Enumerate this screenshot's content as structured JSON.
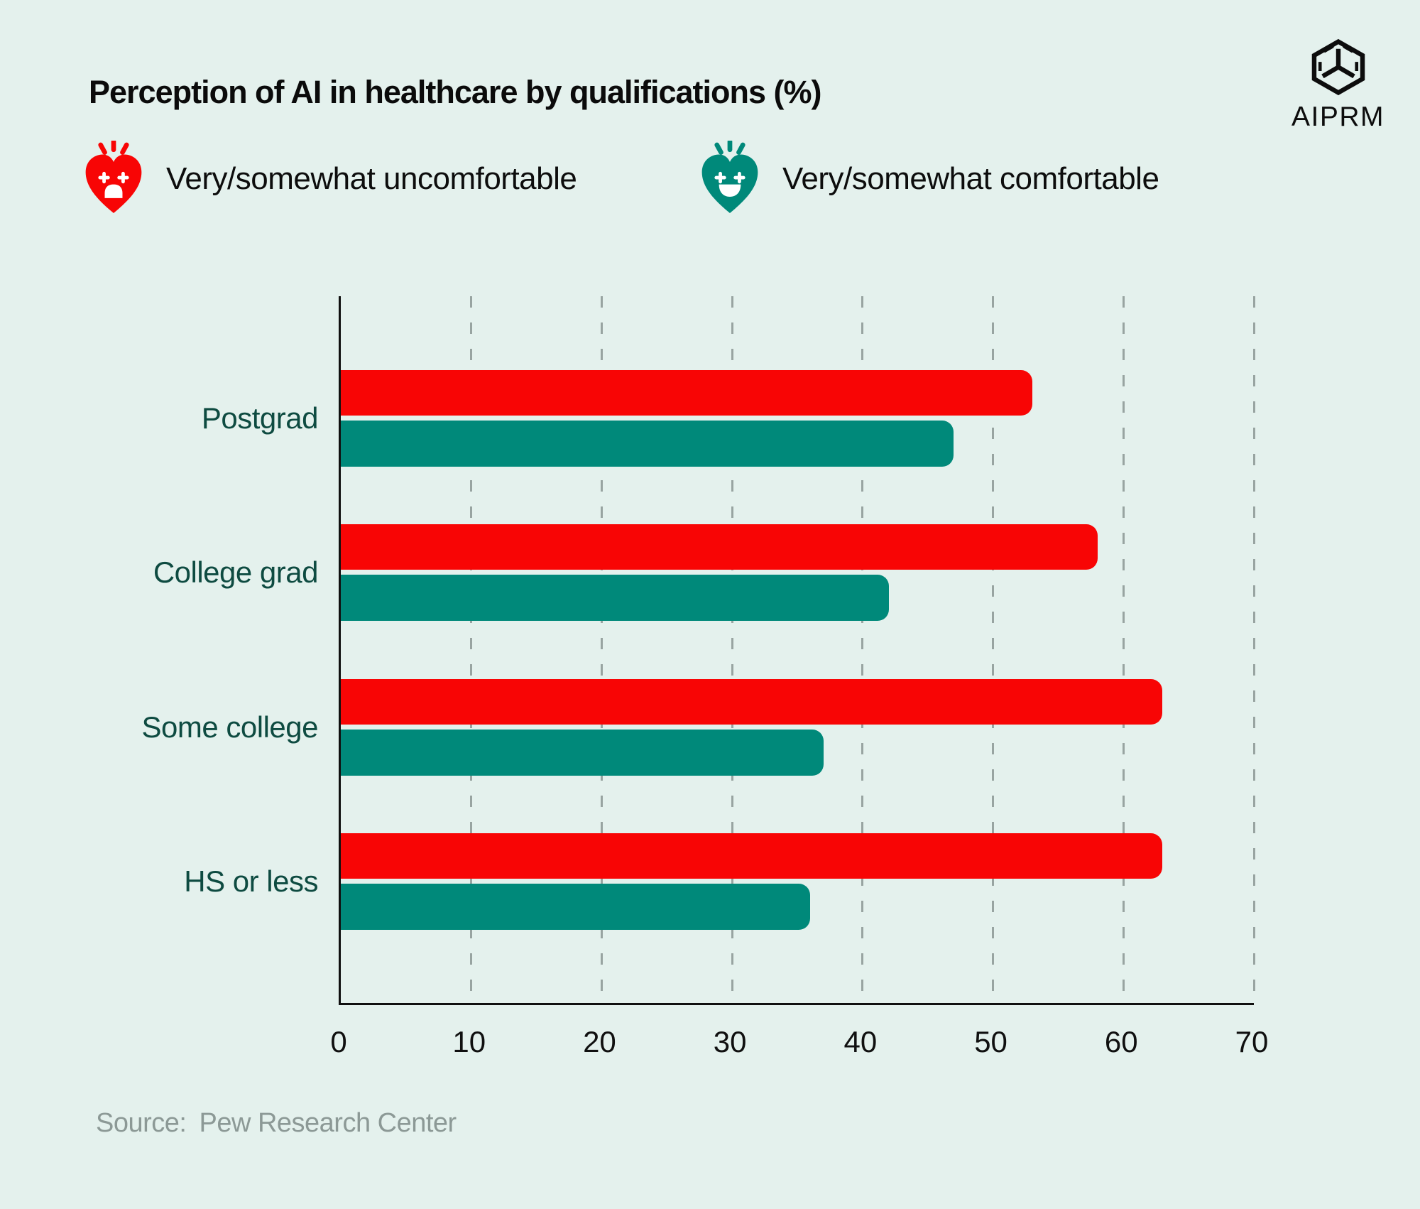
{
  "title": "Perception of AI in healthcare by qualifications (%)",
  "logo": {
    "text": "AIPRM"
  },
  "legend": [
    {
      "label": "Very/somewhat uncomfortable",
      "icon": "shocked-heart-icon",
      "color": "#f80505"
    },
    {
      "label": "Very/somewhat comfortable",
      "icon": "happy-heart-icon",
      "color": "#00897a"
    }
  ],
  "source": {
    "label": "Source:",
    "text": "Pew Research Center"
  },
  "colors": {
    "background": "#e4f1ed",
    "uncomfortable_red": "#f80505",
    "comfortable_teal": "#00897a",
    "category_label": "#0e4b41",
    "gridline": "#98a4a1",
    "axis": "#101010",
    "source_text": "#8c9996"
  },
  "chart_data": {
    "type": "bar",
    "orientation": "horizontal",
    "title": "Perception of AI in healthcare by qualifications (%)",
    "categories": [
      "Postgrad",
      "College grad",
      "Some college",
      "HS or less"
    ],
    "series": [
      {
        "name": "Very/somewhat uncomfortable",
        "color": "#f80505",
        "values": [
          53,
          58,
          63,
          63
        ]
      },
      {
        "name": "Very/somewhat comfortable",
        "color": "#00897a",
        "values": [
          47,
          42,
          37,
          36
        ]
      }
    ],
    "xlabel": "",
    "ylabel": "",
    "xlim": [
      0,
      70
    ],
    "xticks": [
      0,
      10,
      20,
      30,
      40,
      50,
      60,
      70
    ],
    "grid": "dashed-vertical",
    "legend_position": "top",
    "source": "Pew Research Center"
  }
}
